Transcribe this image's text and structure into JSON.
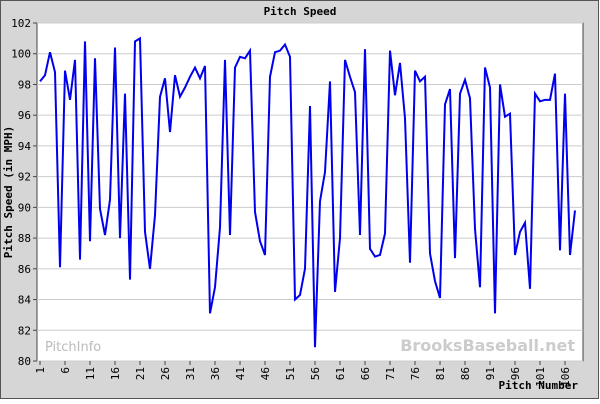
{
  "chart_data": {
    "type": "line",
    "title": "Pitch Speed",
    "x_label": "Pitch Number",
    "y_label": "Pitch Speed (in MPH)",
    "watermarks": [
      "PitchInfo",
      "BrooksBaseball.net"
    ],
    "x": [
      1,
      2,
      3,
      4,
      5,
      6,
      7,
      8,
      9,
      10,
      11,
      12,
      13,
      14,
      15,
      16,
      17,
      18,
      19,
      20,
      21,
      22,
      23,
      24,
      25,
      26,
      27,
      28,
      29,
      30,
      31,
      32,
      33,
      34,
      35,
      36,
      37,
      38,
      39,
      40,
      41,
      42,
      43,
      44,
      45,
      46,
      47,
      48,
      49,
      50,
      51,
      52,
      53,
      54,
      55,
      56,
      57,
      58,
      59,
      60,
      61,
      62,
      63,
      64,
      65,
      66,
      67,
      68,
      69,
      70,
      71,
      72,
      73,
      74,
      75,
      76,
      77,
      78,
      79,
      80,
      81,
      82,
      83,
      84,
      85,
      86,
      87,
      88,
      89,
      90,
      91,
      92,
      93,
      94,
      95,
      96,
      97,
      98,
      99,
      100,
      101,
      102,
      103,
      104,
      105,
      106,
      107,
      108
    ],
    "series": [
      {
        "name": "Pitch Speed",
        "color": "#0000ee",
        "values": [
          98.2,
          98.6,
          100.1,
          98.8,
          86.1,
          98.9,
          97.0,
          99.6,
          86.6,
          100.8,
          87.8,
          99.7,
          89.9,
          88.2,
          90.5,
          100.4,
          88.0,
          97.4,
          85.3,
          100.8,
          101.0,
          88.4,
          86.0,
          89.5,
          97.2,
          98.4,
          94.9,
          98.6,
          97.2,
          97.8,
          98.5,
          99.1,
          98.4,
          99.2,
          83.1,
          84.8,
          88.7,
          99.6,
          88.2,
          99.1,
          99.8,
          99.7,
          100.2,
          89.7,
          87.8,
          86.9,
          98.5,
          100.1,
          100.2,
          100.6,
          99.8,
          84.0,
          84.3,
          86.0,
          96.6,
          80.9,
          90.4,
          92.3,
          98.2,
          84.5,
          88.0,
          99.6,
          98.5,
          97.5,
          88.2,
          100.3,
          87.3,
          86.8,
          86.9,
          88.3,
          100.2,
          97.3,
          99.4,
          95.8,
          86.4,
          98.9,
          98.2,
          98.5,
          87.0,
          85.2,
          84.1,
          96.7,
          97.7,
          86.7,
          97.4,
          98.3,
          97.1,
          88.6,
          84.8,
          99.1,
          97.8,
          83.1,
          98.0,
          95.9,
          96.1,
          86.9,
          88.4,
          89.0,
          84.7,
          97.4,
          96.9,
          97.0,
          97.0,
          98.7,
          87.2,
          97.4,
          86.9,
          89.8
        ]
      }
    ],
    "xlim": [
      0.4,
      109.6
    ],
    "ylim": [
      80,
      102
    ],
    "xticks": [
      1,
      6,
      11,
      16,
      21,
      26,
      31,
      36,
      41,
      46,
      51,
      56,
      61,
      66,
      71,
      76,
      81,
      86,
      91,
      96,
      101,
      106
    ],
    "yticks": [
      80,
      82,
      84,
      86,
      88,
      90,
      92,
      94,
      96,
      98,
      100,
      102
    ],
    "grid": true
  }
}
